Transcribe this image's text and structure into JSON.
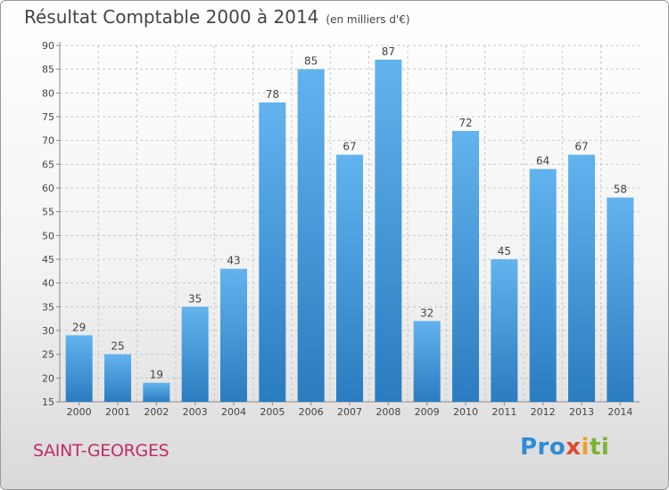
{
  "page": {
    "title": "Résultat Comptable 2000 à 2014",
    "subtitle": "(en milliers d'€)",
    "commune": "SAINT-GEORGES",
    "logo": "Proxiti"
  },
  "colors": {
    "bar_light": "#62b3ee",
    "bar_dark": "#2a7cc0",
    "grid": "#c8c8c8",
    "text": "#444444"
  },
  "chart_data": {
    "type": "bar",
    "title": "Résultat Comptable 2000 à 2014",
    "subtitle": "(en milliers d'€)",
    "xlabel": "",
    "ylabel": "",
    "categories": [
      "2000",
      "2001",
      "2002",
      "2003",
      "2004",
      "2005",
      "2006",
      "2007",
      "2008",
      "2009",
      "2010",
      "2011",
      "2012",
      "2013",
      "2014"
    ],
    "values": [
      29,
      25,
      19,
      35,
      43,
      78,
      85,
      67,
      87,
      32,
      72,
      45,
      64,
      67,
      58
    ],
    "ylim": [
      15,
      90
    ],
    "yticks": [
      15,
      20,
      25,
      30,
      35,
      40,
      45,
      50,
      55,
      60,
      65,
      70,
      75,
      80,
      85,
      90
    ],
    "grid": true,
    "data_labels": true
  }
}
